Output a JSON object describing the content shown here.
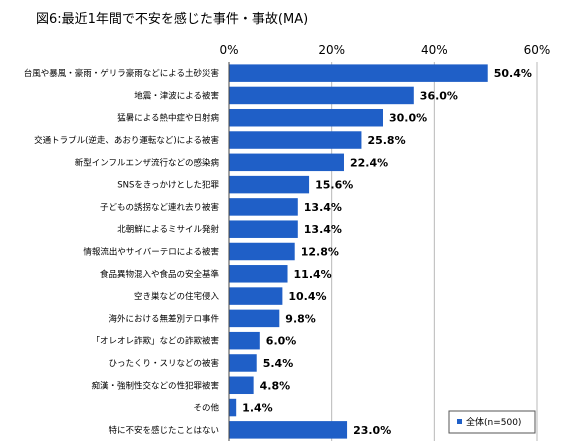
{
  "chart_data": {
    "type": "bar",
    "orientation": "horizontal",
    "title": "図6:最近1年間で不安を感じた事件・事故(MA)",
    "x_ticks": [
      "0%",
      "20%",
      "40%",
      "60%"
    ],
    "xlim": [
      0,
      60
    ],
    "grid": true,
    "legend_position": "bottom-right",
    "bar_color": "#1f5fc7",
    "categories": [
      "台風や暴風・豪雨・ゲリラ豪雨などによる土砂災害",
      "地震・津波による被害",
      "猛暑による熱中症や日射病",
      "交通トラブル(逆走、あおり運転など)による被害",
      "新型インフルエンザ流行などの感染病",
      "SNSをきっかけとした犯罪",
      "子どもの誘拐など連れ去り被害",
      "北朝鮮によるミサイル発射",
      "情報流出やサイバーテロによる被害",
      "食品異物混入や食品の安全基準",
      "空き巣などの住宅侵入",
      "海外における無差別テロ事件",
      "「オレオレ詐欺」などの詐欺被害",
      "ひったくり・スリなどの被害",
      "痴漢・強制性交などの性犯罪被害",
      "その他",
      "特に不安を感じたことはない"
    ],
    "series": [
      {
        "name": "全体(n=500)",
        "values": [
          50.4,
          36.0,
          30.0,
          25.8,
          22.4,
          15.6,
          13.4,
          13.4,
          12.8,
          11.4,
          10.4,
          9.8,
          6.0,
          5.4,
          4.8,
          1.4,
          23.0
        ],
        "labels": [
          "50.4%",
          "36.0%",
          "30.0%",
          "25.8%",
          "22.4%",
          "15.6%",
          "13.4%",
          "13.4%",
          "12.8%",
          "11.4%",
          "10.4%",
          "9.8%",
          "6.0%",
          "5.4%",
          "4.8%",
          "1.4%",
          "23.0%"
        ]
      }
    ]
  }
}
